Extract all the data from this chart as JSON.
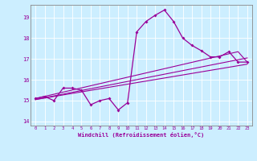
{
  "xlabel": "Windchill (Refroidissement éolien,°C)",
  "ylabel": "",
  "bg_color": "#cceeff",
  "line_color": "#990099",
  "xlim": [
    -0.5,
    23.5
  ],
  "ylim": [
    13.8,
    19.6
  ],
  "xticks": [
    0,
    1,
    2,
    3,
    4,
    5,
    6,
    7,
    8,
    9,
    10,
    11,
    12,
    13,
    14,
    15,
    16,
    17,
    18,
    19,
    20,
    21,
    22,
    23
  ],
  "yticks": [
    14,
    15,
    16,
    17,
    18,
    19
  ],
  "main_series": [
    [
      0,
      15.1
    ],
    [
      1,
      15.2
    ],
    [
      2,
      15.0
    ],
    [
      3,
      15.6
    ],
    [
      4,
      15.6
    ],
    [
      5,
      15.5
    ],
    [
      6,
      14.8
    ],
    [
      7,
      15.0
    ],
    [
      8,
      15.1
    ],
    [
      9,
      14.55
    ],
    [
      10,
      14.9
    ],
    [
      11,
      18.3
    ],
    [
      12,
      18.8
    ],
    [
      13,
      19.1
    ],
    [
      14,
      19.35
    ],
    [
      15,
      18.8
    ],
    [
      16,
      18.0
    ],
    [
      17,
      17.65
    ],
    [
      18,
      17.4
    ],
    [
      19,
      17.1
    ],
    [
      20,
      17.1
    ],
    [
      21,
      17.35
    ],
    [
      22,
      16.85
    ],
    [
      23,
      16.85
    ]
  ],
  "line2": [
    [
      0,
      15.05
    ],
    [
      23,
      17.05
    ]
  ],
  "line3": [
    [
      0,
      15.05
    ],
    [
      23,
      16.75
    ]
  ],
  "line4": [
    [
      0,
      15.1
    ],
    [
      22,
      17.35
    ],
    [
      23,
      16.85
    ]
  ]
}
